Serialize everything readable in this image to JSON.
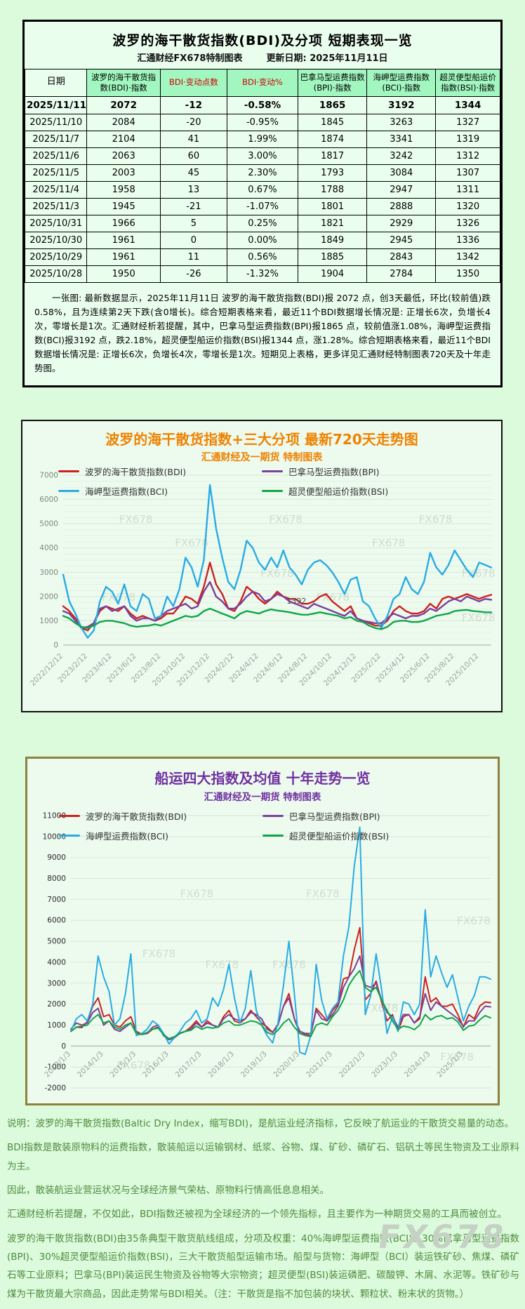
{
  "page": {
    "watermark": "FX678",
    "background": "#dcfadc"
  },
  "colors": {
    "bdi_red": "#cc2121",
    "bpi_purple": "#7e3f9d",
    "bci_blue": "#2aabe4",
    "bsi_green": "#10a54a",
    "title_720_orange": "#ef8200",
    "title_10y_purple": "#7030a0",
    "header_red": "#d00000",
    "footer_green": "#4e8c3e",
    "table_header_bg": "#a2f7c0"
  },
  "table_section": {
    "title": "波罗的海干散货指数(BDI)及分项  短期表现一览",
    "source": "汇通财经FX678特制图表",
    "update_label": "更新日期: 2025年11月11日",
    "columns": [
      "日期",
      "波罗的海干散货指数(BDI)·指数",
      "BDI·变动点数",
      "BDI·变动%",
      "巴拿马型运费指数(BPI)·指数",
      "海岬型运费指数(BCI)·指数",
      "超灵便型船运价指数(BSI)·指数"
    ],
    "rows": [
      [
        "2025/11/11",
        "2072",
        "-12",
        "-0.58%",
        "1865",
        "3192",
        "1344"
      ],
      [
        "2025/11/10",
        "2084",
        "-20",
        "-0.95%",
        "1845",
        "3263",
        "1327"
      ],
      [
        "2025/11/7",
        "2104",
        "41",
        "1.99%",
        "1874",
        "3341",
        "1319"
      ],
      [
        "2025/11/6",
        "2063",
        "60",
        "3.00%",
        "1817",
        "3242",
        "1312"
      ],
      [
        "2025/11/5",
        "2003",
        "45",
        "2.30%",
        "1793",
        "3084",
        "1307"
      ],
      [
        "2025/11/4",
        "1958",
        "13",
        "0.67%",
        "1788",
        "2947",
        "1311"
      ],
      [
        "2025/11/3",
        "1945",
        "-21",
        "-1.07%",
        "1801",
        "2888",
        "1320"
      ],
      [
        "2025/10/31",
        "1966",
        "5",
        "0.25%",
        "1821",
        "2929",
        "1326"
      ],
      [
        "2025/10/30",
        "1961",
        "0",
        "0.00%",
        "1849",
        "2945",
        "1336"
      ],
      [
        "2025/10/29",
        "1961",
        "11",
        "0.56%",
        "1885",
        "2843",
        "1342"
      ],
      [
        "2025/10/28",
        "1950",
        "-26",
        "-1.32%",
        "1904",
        "2784",
        "1350"
      ]
    ],
    "note": "一张图: 最新数据显示，2025年11月11日 波罗的海干散货指数(BDI)报 2072 点，创3天最低，环比(较前值)跌0.58%，且为连续第2天下跌(含0增长)。综合短期表格来看，最近11个BDI数据增长情况是: 正增长6次，负增长4次，零增长是1次。汇通财经析若提醒，其中，巴拿马型运费指数(BPI)报1865 点，较前值涨1.08%，海岬型运费指数(BCI)报3192 点，跌2.18%，超灵便型船运价指数(BSI)报1344 点，涨1.28%。综合短期表格来看，最近11个BDI数据增长情况是: 正增长6次，负增长4次，零增长是1次。短期见上表格，更多详见汇通财经特制图表720天及十年走势图。"
  },
  "chart_data": [
    {
      "type": "line",
      "name": "bdi-720d-chart",
      "title": "波罗的海干散货指数+三大分项  最新720天走势图",
      "subtitle": "汇通财经及一期货 特制图表",
      "ylim": [
        0,
        7000
      ],
      "ytick": 1000,
      "grid": true,
      "legend_position": "top-center",
      "x_ticks": {
        "labels": [
          "2022/12/12",
          "2023/2/12",
          "2023/4/12",
          "2023/6/12",
          "2023/8/12",
          "2023/10/12",
          "2023/12/12",
          "2024/2/12",
          "2024/4/12",
          "2024/6/12",
          "2024/8/12",
          "2024/10/12",
          "2024/12/12",
          "2025/2/12",
          "2025/4/12",
          "2025/6/12",
          "2025/8/12",
          "2025/10/12"
        ],
        "end_frac": 0.971
      },
      "annotation": {
        "text": "1392",
        "x_frac": 0.545,
        "y": 1700
      },
      "series": [
        {
          "name": "波罗的海干散货指数(BDI)",
          "color": "#cc2121",
          "values": [
            1600,
            1400,
            1100,
            700,
            600,
            900,
            1400,
            1600,
            1500,
            1400,
            1600,
            1300,
            1100,
            1200,
            1100,
            1000,
            1100,
            1300,
            1300,
            1600,
            2000,
            1900,
            1700,
            2400,
            3400,
            2500,
            2100,
            1500,
            1400,
            1800,
            2400,
            2200,
            1900,
            1700,
            1900,
            2200,
            2000,
            1900,
            1900,
            1700,
            1700,
            1800,
            2000,
            2100,
            1800,
            1600,
            1400,
            1600,
            1100,
            1000,
            900,
            800,
            800,
            1000,
            1400,
            1600,
            1400,
            1300,
            1300,
            1400,
            1700,
            1500,
            1900,
            2000,
            1900,
            2000,
            2100,
            2000,
            1900,
            2000,
            2072
          ]
        },
        {
          "name": "巴拿马型运费指数(BPI)",
          "color": "#7e3f9d",
          "values": [
            1400,
            1300,
            1000,
            700,
            750,
            900,
            1500,
            1600,
            1400,
            1500,
            1600,
            1200,
            1000,
            1100,
            1100,
            1000,
            1200,
            1400,
            1500,
            1600,
            1700,
            1500,
            1600,
            2200,
            2600,
            2000,
            1800,
            1500,
            1500,
            1700,
            2000,
            2200,
            2100,
            1800,
            1900,
            2100,
            2000,
            1800,
            1700,
            1600,
            1500,
            1700,
            1600,
            1500,
            1400,
            1300,
            1200,
            1400,
            1100,
            1000,
            950,
            900,
            900,
            1100,
            1300,
            1200,
            1100,
            1200,
            1200,
            1300,
            1500,
            1400,
            1600,
            1800,
            1900,
            1800,
            2000,
            1900,
            1800,
            1900,
            1865
          ]
        },
        {
          "name": "海岬型运费指数(BCI)",
          "color": "#2aabe4",
          "values": [
            2900,
            1800,
            1300,
            700,
            300,
            600,
            1800,
            2400,
            2200,
            1700,
            2500,
            1600,
            1400,
            2100,
            1900,
            1100,
            1200,
            2000,
            1600,
            2300,
            3600,
            3200,
            2400,
            3500,
            6600,
            4800,
            3600,
            2600,
            2300,
            3100,
            4300,
            4000,
            3400,
            3100,
            3600,
            3200,
            3900,
            3200,
            2900,
            2500,
            3100,
            3400,
            3500,
            3300,
            3000,
            2600,
            2100,
            2700,
            2800,
            1800,
            1600,
            1100,
            700,
            1200,
            1900,
            2100,
            2800,
            2300,
            2100,
            2600,
            3800,
            3200,
            2900,
            3300,
            3900,
            3500,
            3100,
            2800,
            3400,
            3300,
            3192
          ]
        },
        {
          "name": "超灵便型船运价指数(BSI)",
          "color": "#10a54a",
          "values": [
            1200,
            1100,
            900,
            750,
            700,
            800,
            950,
            1000,
            1000,
            950,
            900,
            800,
            750,
            780,
            800,
            850,
            800,
            900,
            1000,
            1100,
            1200,
            1150,
            1200,
            1400,
            1500,
            1400,
            1300,
            1200,
            1100,
            1300,
            1400,
            1350,
            1300,
            1400,
            1470,
            1420,
            1392,
            1350,
            1300,
            1250,
            1250,
            1300,
            1350,
            1300,
            1250,
            1200,
            1100,
            1150,
            1000,
            950,
            800,
            700,
            650,
            750,
            950,
            1000,
            1000,
            950,
            950,
            1000,
            1100,
            1200,
            1250,
            1300,
            1400,
            1430,
            1450,
            1400,
            1380,
            1350,
            1344
          ]
        }
      ]
    },
    {
      "type": "line",
      "name": "shipping-10y-chart",
      "title": "船运四大指数及均值 十年走势一览",
      "subtitle": "汇通财经及一期货 特制图表",
      "ylim": [
        -2000,
        11000
      ],
      "ytick": 1000,
      "grid": true,
      "legend_position": "top-center",
      "x_ticks": {
        "labels": [
          "2013/1/3",
          "2014/1/3",
          "2015/1/3",
          "2016/1/3",
          "2017/1/3",
          "2018/1/3",
          "2019/1/3",
          "2020/1/3",
          "2021/1/3",
          "2022/1/3",
          "2023/1/3",
          "2024/1/3",
          "2025/1/3"
        ],
        "end_frac": 0.935
      },
      "series": [
        {
          "name": "波罗的海干散货指数(BDI)",
          "color": "#cc2121",
          "values": [
            700,
            900,
            880,
            1150,
            1900,
            2300,
            1400,
            1500,
            1000,
            900,
            1200,
            1400,
            700,
            560,
            600,
            800,
            900,
            550,
            320,
            400,
            620,
            700,
            900,
            1200,
            900,
            1200,
            1000,
            900,
            1400,
            1700,
            1200,
            1100,
            1300,
            1700,
            1400,
            1100,
            900,
            650,
            1050,
            1900,
            2500,
            1300,
            600,
            550,
            500,
            1800,
            1500,
            1200,
            1700,
            2000,
            3200,
            3300,
            4600,
            5650,
            2200,
            2500,
            3100,
            2100,
            1200,
            1500,
            700,
            1400,
            1500,
            1100,
            1300,
            3300,
            2100,
            2300,
            1900,
            1900,
            2000,
            1500,
            900,
            1500,
            1300,
            1900,
            2100,
            2072
          ]
        },
        {
          "name": "巴拿马型运费指数(BPI)",
          "color": "#7e3f9d",
          "values": [
            800,
            1100,
            1000,
            1100,
            1600,
            1800,
            1000,
            1200,
            800,
            700,
            900,
            1100,
            600,
            550,
            600,
            900,
            1000,
            500,
            300,
            400,
            600,
            700,
            800,
            1100,
            900,
            1100,
            1000,
            900,
            1300,
            1500,
            1300,
            1200,
            1300,
            1600,
            1500,
            1300,
            800,
            650,
            1000,
            1900,
            2300,
            1300,
            700,
            600,
            600,
            1700,
            1300,
            1200,
            1500,
            1900,
            2800,
            3300,
            3700,
            4300,
            2900,
            2800,
            3000,
            2200,
            1600,
            1400,
            900,
            1500,
            1500,
            1100,
            1400,
            2500,
            1700,
            2100,
            1900,
            1700,
            1500,
            1300,
            950,
            1200,
            1200,
            1600,
            1900,
            1865
          ]
        },
        {
          "name": "海岬型运费指数(BCI)",
          "color": "#2aabe4",
          "values": [
            700,
            1300,
            1500,
            1200,
            2000,
            4300,
            3300,
            2600,
            1000,
            1300,
            2500,
            4400,
            500,
            600,
            800,
            1200,
            1000,
            600,
            100,
            400,
            700,
            1100,
            1300,
            1700,
            1100,
            1300,
            2300,
            1900,
            2700,
            3900,
            2300,
            1100,
            1800,
            3600,
            1700,
            1000,
            500,
            150,
            1100,
            2900,
            5000,
            2500,
            -300,
            -400,
            500,
            3900,
            2200,
            1300,
            1800,
            2100,
            4300,
            5700,
            8600,
            10450,
            1500,
            2400,
            4400,
            2700,
            600,
            1400,
            700,
            2100,
            2000,
            1500,
            2000,
            6500,
            3300,
            4300,
            3500,
            2800,
            3400,
            2300,
            1200,
            1900,
            2400,
            3300,
            3300,
            3192
          ]
        },
        {
          "name": "超灵便型船运价指数(BSI)",
          "color": "#10a54a",
          "values": [
            700,
            900,
            950,
            1000,
            1300,
            1500,
            1100,
            1200,
            900,
            800,
            1000,
            1100,
            600,
            550,
            650,
            800,
            850,
            550,
            350,
            450,
            600,
            700,
            750,
            950,
            800,
            900,
            850,
            900,
            1100,
            1200,
            1000,
            1000,
            1100,
            1200,
            1150,
            1000,
            650,
            550,
            750,
            1100,
            1300,
            900,
            600,
            500,
            450,
            1000,
            1100,
            1000,
            1400,
            1700,
            2200,
            2900,
            3300,
            3600,
            2800,
            2600,
            2800,
            2200,
            1700,
            1200,
            800,
            950,
            900,
            780,
            1000,
            1500,
            1250,
            1400,
            1450,
            1300,
            1350,
            1150,
            750,
            950,
            1000,
            1250,
            1450,
            1344
          ]
        }
      ]
    }
  ],
  "footer": {
    "lines": [
      "说明：波罗的海干散货指数(Baltic Dry Index，缩写BDI)，是航运业经济指标，它反映了航运业的干散货交易量的动态。",
      "BDI指数是散装原物料的运费指数，散装船运以运输钢材、纸浆、谷物、煤、矿砂、磷矿石、铝矾土等民生物资及工业原料为主。",
      "因此，散装航运业营运状况与全球经济景气荣枯、原物料行情高低息息相关。",
      "汇通财经析若提醒，不仅如此，BDI指数还被视为全球经济的一个领先指标，且主要作为一种期货交易的工具而被创立。",
      "波罗的海干散货指数(BDI)由35条典型干散货航线组成，分项及权重：40%海岬型运费指数(BCI)、30%巴拿马型运费指数(BPI)、30%超灵便型船运价指数(BSI)，三大干散货船型运输市场。船型与货物：海岬型（BCI）装运铁矿砂、焦煤、磷矿石等工业原料；巴拿马(BPI)装运民生物资及谷物等大宗物资；超灵便型(BSI)装运磷肥、碳酸钾、木屑、水泥等。铁矿砂与煤为干散货最大宗商品，因此走势常与BDI相关。（注：干散货是指不加包装的块状、颗粒状、粉末状的货物。）"
    ]
  }
}
